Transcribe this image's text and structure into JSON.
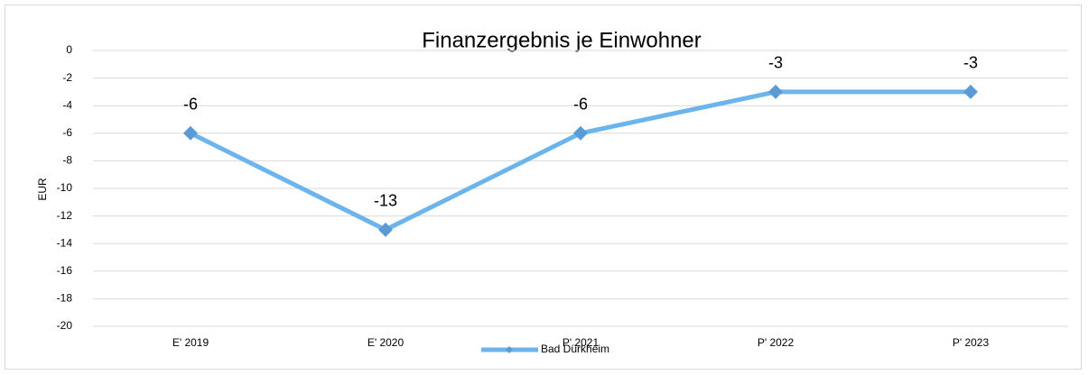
{
  "chart_data": {
    "type": "line",
    "title": "Finanzergebnis je Einwohner",
    "y_label": "EUR",
    "categories": [
      "E' 2019",
      "E' 2020",
      "P' 2021",
      "P' 2022",
      "P' 2023"
    ],
    "series": [
      {
        "name": "Bad Dürkheim",
        "color": "#6cb4ec",
        "marker_color": "#5b9bd5",
        "values": [
          -6,
          -13,
          -6,
          -3,
          -3
        ]
      }
    ],
    "ylim": [
      -20,
      0
    ],
    "yticks": [
      0,
      -2,
      -4,
      -6,
      -8,
      -10,
      -12,
      -14,
      -16,
      -18,
      -20
    ],
    "grid": true,
    "legend": "bottom"
  }
}
